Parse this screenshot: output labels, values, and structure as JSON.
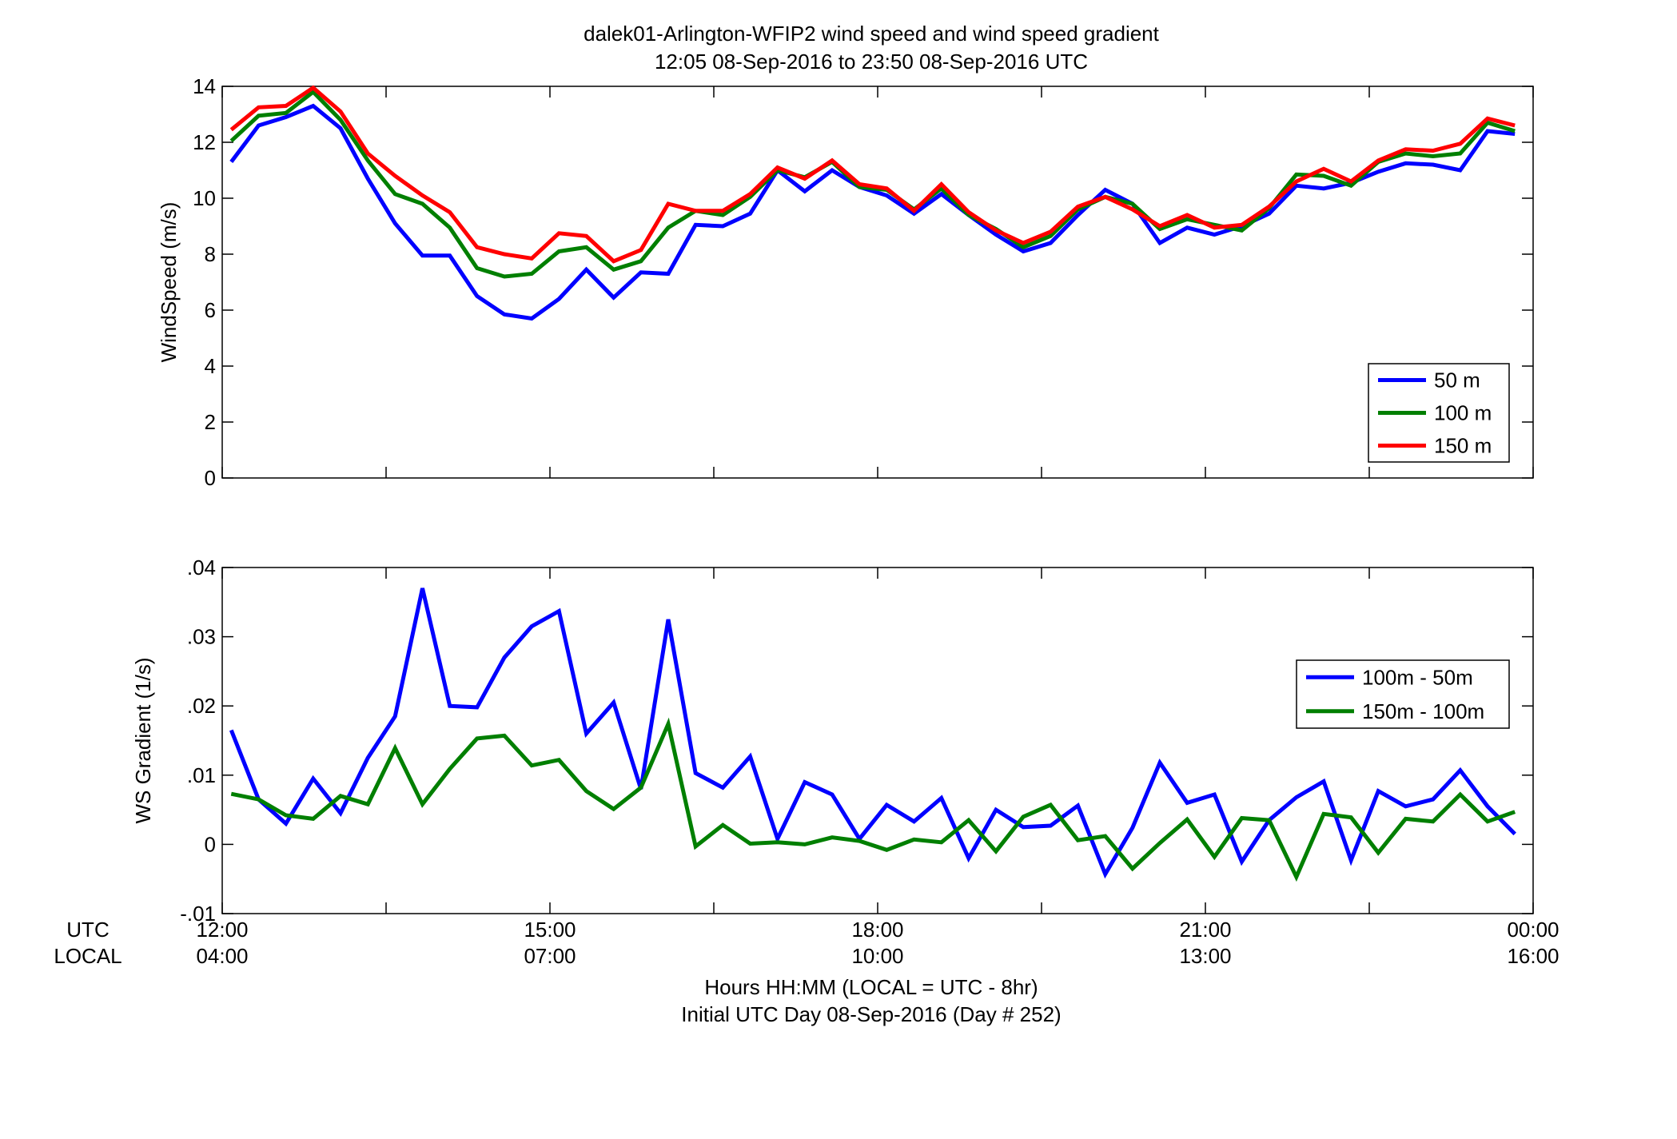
{
  "figure": {
    "title_line1": "dalek01-Arlington-WFIP2  wind speed and wind speed gradient",
    "title_line2": "12:05 08-Sep-2016 to 23:50 08-Sep-2016  UTC",
    "utc_row_label": "UTC",
    "local_row_label": "LOCAL",
    "xlabel_line1": "Hours HH:MM  (LOCAL = UTC - 8hr)",
    "xlabel_line2": "Initial UTC Day 08-Sep-2016 (Day # 252)",
    "utc_ticks": [
      "12:00",
      "15:00",
      "18:00",
      "21:00",
      "00:00"
    ],
    "local_ticks": [
      "04:00",
      "07:00",
      "10:00",
      "13:00",
      "16:00"
    ]
  },
  "chart_data": [
    {
      "type": "line",
      "ylabel": "WindSpeed (m/s)",
      "xlim": [
        12,
        24
      ],
      "ylim": [
        0,
        14
      ],
      "yticks": [
        0,
        2,
        4,
        6,
        8,
        10,
        12,
        14
      ],
      "legend_placement": "lower-right",
      "x": [
        12.083,
        12.333,
        12.583,
        12.833,
        13.083,
        13.333,
        13.583,
        13.833,
        14.083,
        14.333,
        14.583,
        14.833,
        15.083,
        15.333,
        15.583,
        15.833,
        16.083,
        16.333,
        16.583,
        16.833,
        17.083,
        17.333,
        17.583,
        17.833,
        18.083,
        18.333,
        18.583,
        18.833,
        19.083,
        19.333,
        19.583,
        19.833,
        20.083,
        20.333,
        20.583,
        20.833,
        21.083,
        21.333,
        21.583,
        21.833,
        22.083,
        22.333,
        22.583,
        22.833,
        23.083,
        23.333,
        23.583,
        23.833
      ],
      "series": [
        {
          "name": "50 m",
          "color": "#0000ff",
          "values": [
            11.3,
            12.6,
            12.9,
            13.3,
            12.5,
            10.7,
            9.1,
            7.95,
            7.95,
            6.5,
            5.85,
            5.7,
            6.4,
            7.45,
            6.45,
            7.35,
            7.3,
            9.05,
            9.0,
            9.45,
            11.0,
            10.25,
            11.0,
            10.4,
            10.1,
            9.45,
            10.15,
            9.4,
            8.7,
            8.1,
            8.4,
            9.4,
            10.3,
            9.8,
            8.4,
            8.95,
            8.7,
            9.0,
            9.45,
            10.45,
            10.35,
            10.55,
            10.95,
            11.25,
            11.2,
            11.0,
            12.4,
            12.3
          ]
        },
        {
          "name": "100 m",
          "color": "#007f00",
          "values": [
            12.05,
            12.95,
            13.05,
            13.8,
            12.8,
            11.35,
            10.15,
            9.8,
            8.95,
            7.5,
            7.2,
            7.3,
            8.1,
            8.25,
            7.45,
            7.75,
            8.95,
            9.55,
            9.4,
            10.05,
            11.0,
            10.75,
            11.3,
            10.4,
            10.3,
            9.6,
            10.35,
            9.4,
            8.9,
            8.25,
            8.65,
            9.6,
            10.05,
            9.8,
            8.9,
            9.25,
            9.05,
            8.85,
            9.65,
            10.85,
            10.8,
            10.45,
            11.3,
            11.6,
            11.5,
            11.6,
            12.7,
            12.4
          ]
        },
        {
          "name": "150 m",
          "color": "#ff0000",
          "values": [
            12.45,
            13.25,
            13.3,
            13.95,
            13.1,
            11.6,
            10.8,
            10.1,
            9.5,
            8.25,
            8.0,
            7.85,
            8.75,
            8.65,
            7.75,
            8.15,
            9.8,
            9.55,
            9.55,
            10.15,
            11.1,
            10.7,
            11.35,
            10.5,
            10.35,
            9.55,
            10.5,
            9.5,
            8.85,
            8.4,
            8.8,
            9.7,
            10.05,
            9.6,
            9.0,
            9.4,
            8.95,
            9.05,
            9.7,
            10.6,
            11.05,
            10.6,
            11.35,
            11.75,
            11.7,
            11.95,
            12.85,
            12.6
          ]
        }
      ]
    },
    {
      "type": "line",
      "ylabel": "WS Gradient (1/s)",
      "xlim": [
        12,
        24
      ],
      "ylim": [
        -0.01,
        0.04
      ],
      "yticks": [
        -0.01,
        0,
        0.01,
        0.02,
        0.03,
        0.04
      ],
      "legend_placement": "right",
      "x": [
        12.083,
        12.333,
        12.583,
        12.833,
        13.083,
        13.333,
        13.583,
        13.833,
        14.083,
        14.333,
        14.583,
        14.833,
        15.083,
        15.333,
        15.583,
        15.833,
        16.083,
        16.333,
        16.583,
        16.833,
        17.083,
        17.333,
        17.583,
        17.833,
        18.083,
        18.333,
        18.583,
        18.833,
        19.083,
        19.333,
        19.583,
        19.833,
        20.083,
        20.333,
        20.583,
        20.833,
        21.083,
        21.333,
        21.583,
        21.833,
        22.083,
        22.333,
        22.583,
        22.833,
        23.083,
        23.333,
        23.583,
        23.833
      ],
      "series": [
        {
          "name": "100m - 50m",
          "color": "#0000ff",
          "values": [
            0.0165,
            0.0065,
            0.003,
            0.0095,
            0.0045,
            0.0125,
            0.0185,
            0.037,
            0.02,
            0.0198,
            0.027,
            0.0315,
            0.0337,
            0.016,
            0.0205,
            0.008,
            0.0325,
            0.0103,
            0.0082,
            0.0127,
            0.0008,
            0.009,
            0.0072,
            0.0008,
            0.0057,
            0.0033,
            0.0067,
            -0.002,
            0.005,
            0.0025,
            0.0027,
            0.0056,
            -0.0043,
            0.0024,
            0.0118,
            0.006,
            0.0072,
            -0.0025,
            0.0035,
            0.0068,
            0.0091,
            -0.0023,
            0.0077,
            0.0055,
            0.0065,
            0.0107,
            0.0055,
            0.0015
          ]
        },
        {
          "name": "150m - 100m",
          "color": "#007f00",
          "values": [
            0.0073,
            0.0065,
            0.0042,
            0.0037,
            0.007,
            0.0058,
            0.0139,
            0.0058,
            0.0109,
            0.0153,
            0.0157,
            0.0114,
            0.0122,
            0.0077,
            0.0051,
            0.0082,
            0.0174,
            -0.0003,
            0.0028,
            0.0001,
            0.0003,
            0.0,
            0.001,
            0.0005,
            -0.0008,
            0.0007,
            0.0003,
            0.0035,
            -0.001,
            0.004,
            0.0057,
            0.0006,
            0.0012,
            -0.0035,
            0.0002,
            0.0036,
            -0.0018,
            0.0038,
            0.0035,
            -0.0047,
            0.0044,
            0.0039,
            -0.0012,
            0.0037,
            0.0033,
            0.0072,
            0.0033,
            0.0047
          ]
        }
      ]
    }
  ]
}
